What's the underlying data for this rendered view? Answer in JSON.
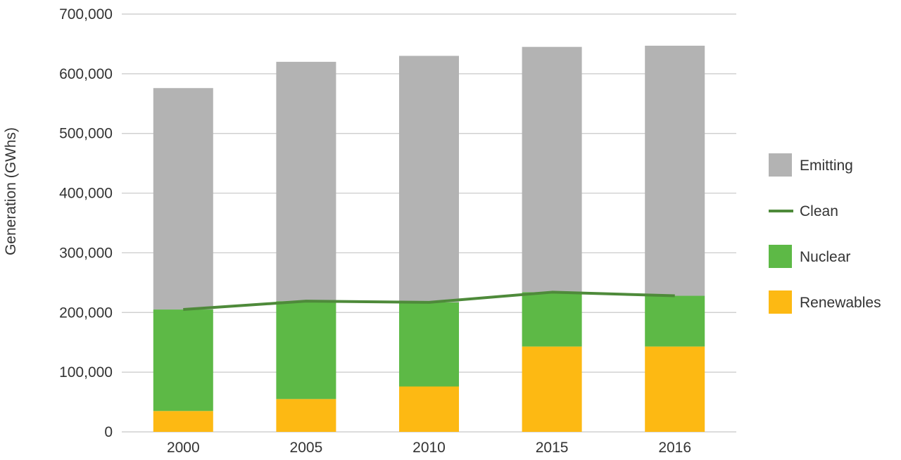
{
  "chart_data": {
    "type": "bar",
    "stacked": true,
    "title": "",
    "xlabel": "",
    "ylabel": "Generation (GWhs)",
    "ylim": [
      0,
      700000
    ],
    "yticks": [
      0,
      100000,
      200000,
      300000,
      400000,
      500000,
      600000,
      700000
    ],
    "ytick_labels": [
      "0",
      "100,000",
      "200,000",
      "300,000",
      "400,000",
      "500,000",
      "600,000",
      "700,000"
    ],
    "categories": [
      "2000",
      "2005",
      "2010",
      "2015",
      "2016"
    ],
    "grid": true,
    "legend_position": "right",
    "series": [
      {
        "name": "Renewables",
        "kind": "bar",
        "color": "#fdb913",
        "values": [
          35000,
          55000,
          76000,
          143000,
          143000
        ]
      },
      {
        "name": "Nuclear",
        "kind": "bar",
        "color": "#5db946",
        "values": [
          170000,
          164000,
          141000,
          91000,
          85000
        ]
      },
      {
        "name": "Emitting",
        "kind": "bar",
        "color": "#b3b3b3",
        "values": [
          371000,
          401000,
          413000,
          411000,
          419000
        ]
      },
      {
        "name": "Clean",
        "kind": "line",
        "color": "#4e8a3a",
        "values": [
          205000,
          219000,
          217000,
          234000,
          228000
        ]
      }
    ],
    "legend_order": [
      "Emitting",
      "Clean",
      "Nuclear",
      "Renewables"
    ]
  }
}
